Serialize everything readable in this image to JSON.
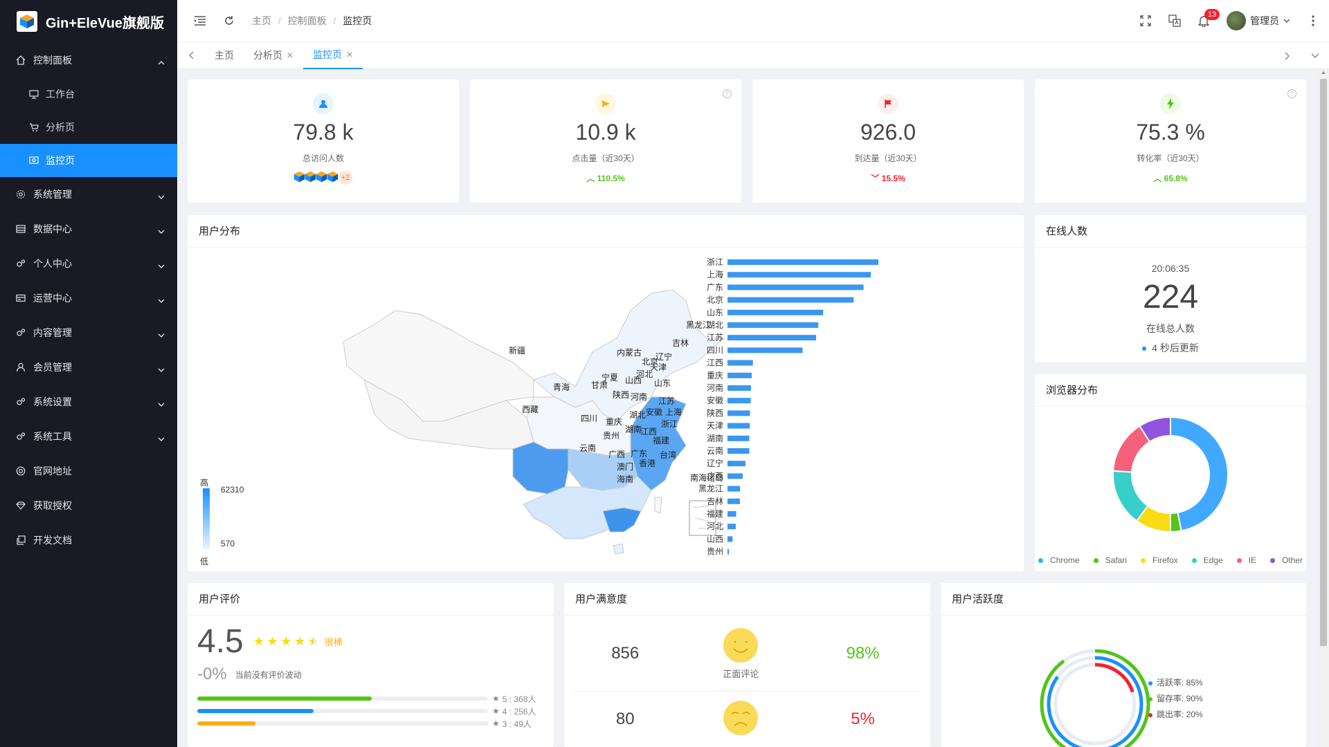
{
  "app": {
    "title": "Gin+EleVue旗舰版"
  },
  "sidebar": {
    "items": [
      {
        "label": "控制面板",
        "icon": "home-icon",
        "expanded": true,
        "children": [
          {
            "label": "工作台",
            "icon": "monitor-icon"
          },
          {
            "label": "分析页",
            "icon": "cart-icon"
          },
          {
            "label": "监控页",
            "icon": "screen-icon",
            "active": true
          }
        ]
      },
      {
        "label": "系统管理",
        "icon": "gear-icon"
      },
      {
        "label": "数据中心",
        "icon": "database-icon"
      },
      {
        "label": "个人中心",
        "icon": "gears-icon"
      },
      {
        "label": "运营中心",
        "icon": "card-icon"
      },
      {
        "label": "内容管理",
        "icon": "gears-icon"
      },
      {
        "label": "会员管理",
        "icon": "user-icon"
      },
      {
        "label": "系统设置",
        "icon": "gears-icon"
      },
      {
        "label": "系统工具",
        "icon": "gears-icon"
      },
      {
        "label": "官网地址",
        "icon": "globe-icon"
      },
      {
        "label": "获取授权",
        "icon": "diamond-icon"
      },
      {
        "label": "开发文档",
        "icon": "copy-icon"
      }
    ]
  },
  "header": {
    "breadcrumb": [
      "主页",
      "控制面板",
      "监控页"
    ],
    "notification_count": "13",
    "user_name": "管理员"
  },
  "tabs": [
    {
      "label": "主页",
      "closable": false
    },
    {
      "label": "分析页",
      "closable": true
    },
    {
      "label": "监控页",
      "closable": true,
      "active": true
    }
  ],
  "stats": [
    {
      "value": "79.8 k",
      "label": "总访问人数",
      "icon": "user-icon",
      "color": "#1890ff",
      "bg": "#e6f4ff",
      "more": "+2"
    },
    {
      "value": "10.9 k",
      "label": "点击量（近30天）",
      "icon": "send-icon",
      "color": "#faad14",
      "bg": "#fff7e0",
      "trend": "110.5%",
      "trend_dir": "up"
    },
    {
      "value": "926.0",
      "label": "到达量（近30天）",
      "icon": "flag-icon",
      "color": "#f5222d",
      "bg": "#fff0f0",
      "trend": "15.5%",
      "trend_dir": "down"
    },
    {
      "value": "75.3 %",
      "label": "转化率（近30天）",
      "icon": "bolt-icon",
      "color": "#52c41a",
      "bg": "#eefbe6",
      "trend": "65.8%",
      "trend_dir": "up"
    }
  ],
  "user_distribution": {
    "title": "用户分布",
    "legend_high": "高",
    "legend_low": "低",
    "legend_max": "62310",
    "legend_min": "570",
    "map_labels": [
      "黑龙江",
      "吉林",
      "辽宁",
      "内蒙古",
      "北京",
      "天津",
      "河北",
      "山西",
      "山东",
      "新疆",
      "青海",
      "甘肃",
      "宁夏",
      "陕西",
      "河南",
      "江苏",
      "上海",
      "安徽",
      "湖北",
      "西藏",
      "四川",
      "重庆",
      "浙江",
      "湖南",
      "江西",
      "贵州",
      "福建",
      "云南",
      "广西",
      "广东",
      "台湾",
      "澳门",
      "香港",
      "海南",
      "南海诸岛"
    ]
  },
  "chart_data": {
    "type": "bar",
    "orientation": "horizontal",
    "categories": [
      "浙江",
      "上海",
      "广东",
      "北京",
      "山东",
      "湖北",
      "江苏",
      "四川",
      "江西",
      "重庆",
      "河南",
      "安徽",
      "陕西",
      "天津",
      "湖南",
      "云南",
      "辽宁",
      "广西",
      "黑龙江",
      "吉林",
      "福建",
      "河北",
      "山西",
      "贵州"
    ],
    "values": [
      62310,
      59200,
      56200,
      52100,
      39500,
      37500,
      36600,
      31000,
      10500,
      10000,
      9700,
      9600,
      9300,
      9200,
      9000,
      9000,
      7400,
      6300,
      5200,
      5100,
      3600,
      3400,
      2100,
      570
    ]
  },
  "online": {
    "title": "在线人数",
    "time": "20:06:35",
    "count": "224",
    "label": "在线总人数",
    "refresh": "4 秒后更新"
  },
  "browser": {
    "title": "浏览器分布",
    "series": [
      {
        "name": "Chrome",
        "value": 47,
        "color": "#40a9ff"
      },
      {
        "name": "Safari",
        "value": 3,
        "color": "#52c41a"
      },
      {
        "name": "Firefox",
        "value": 10,
        "color": "#fadb14"
      },
      {
        "name": "Edge",
        "value": 16,
        "color": "#36cfc9"
      },
      {
        "name": "IE",
        "value": 15,
        "color": "#f5607a"
      },
      {
        "name": "Other",
        "value": 9,
        "color": "#9254de"
      }
    ]
  },
  "rating": {
    "title": "用户评价",
    "score": "4.5",
    "label": "很棒",
    "change": "-0%",
    "change_note": "当前没有评价波动",
    "rows": [
      {
        "label": "5 : 368人",
        "pct": 60,
        "color": "#52c41a"
      },
      {
        "label": "4 : 256人",
        "pct": 40,
        "color": "#1890ff"
      },
      {
        "label": "3 : 49人",
        "pct": 20,
        "color": "#faad14"
      }
    ]
  },
  "satisfaction": {
    "title": "用户满意度",
    "positive": {
      "count": "856",
      "label": "正面评论",
      "pct": "98%"
    },
    "negative": {
      "count": "80",
      "pct": "5%"
    }
  },
  "activity": {
    "title": "用户活跃度",
    "items": [
      {
        "label": "活跃率: 85%",
        "value": 85,
        "color": "#1890ff"
      },
      {
        "label": "留存率: 90%",
        "value": 90,
        "color": "#52c41a"
      },
      {
        "label": "跳出率: 20%",
        "value": 20,
        "color": "#f5222d"
      }
    ]
  }
}
